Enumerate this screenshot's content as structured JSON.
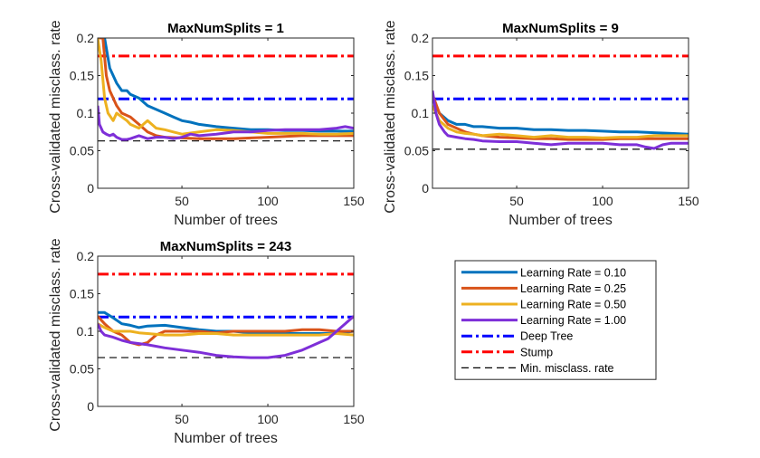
{
  "figure": {
    "colors": {
      "lr010": "#0072BD",
      "lr025": "#D95319",
      "lr050": "#EDB120",
      "lr100": "#7E2FD8",
      "deep_tree": "#0000FF",
      "stump": "#FF0000",
      "min_rate": "#000000"
    }
  },
  "legend": {
    "placement": "lower-right",
    "entries": [
      {
        "label": "Learning Rate = 0.10",
        "color": "#0072BD",
        "style": "solid"
      },
      {
        "label": "Learning Rate = 0.25",
        "color": "#D95319",
        "style": "solid"
      },
      {
        "label": "Learning Rate = 0.50",
        "color": "#EDB120",
        "style": "solid"
      },
      {
        "label": "Learning Rate = 1.00",
        "color": "#7E2FD8",
        "style": "solid"
      },
      {
        "label": "Deep Tree",
        "color": "#0000FF",
        "style": "dashdot"
      },
      {
        "label": "Stump",
        "color": "#FF0000",
        "style": "dashdot"
      },
      {
        "label": "Min. misclass. rate",
        "color": "#000000",
        "style": "dashed"
      }
    ]
  },
  "chart_data": [
    {
      "type": "line",
      "title": "MaxNumSplits = 1",
      "xlabel": "Number of trees",
      "ylabel": "Cross-validated misclass. rate",
      "xlim": [
        1,
        150
      ],
      "ylim": [
        0,
        0.2
      ],
      "xticks": [
        50,
        100,
        150
      ],
      "xtick_labels": [
        "50",
        "100",
        "150"
      ],
      "yticks": [
        0,
        0.05,
        0.1,
        0.15,
        0.2
      ],
      "ytick_labels": [
        "0",
        "0.05",
        "0.1",
        "0.15",
        "0.2"
      ],
      "grid": false,
      "series": [
        {
          "name": "Learning Rate = 0.10",
          "color": "#0072BD",
          "x": [
            1,
            5,
            8,
            10,
            12,
            15,
            18,
            20,
            25,
            30,
            35,
            40,
            45,
            50,
            55,
            60,
            70,
            80,
            90,
            100,
            110,
            120,
            130,
            140,
            150
          ],
          "y": [
            0.2,
            0.2,
            0.16,
            0.15,
            0.14,
            0.13,
            0.13,
            0.125,
            0.12,
            0.11,
            0.105,
            0.1,
            0.095,
            0.09,
            0.088,
            0.085,
            0.082,
            0.08,
            0.078,
            0.078,
            0.077,
            0.077,
            0.076,
            0.076,
            0.076
          ]
        },
        {
          "name": "Learning Rate = 0.25",
          "color": "#D95319",
          "x": [
            1,
            4,
            6,
            8,
            10,
            12,
            15,
            20,
            25,
            30,
            35,
            40,
            50,
            60,
            70,
            80,
            90,
            100,
            110,
            120,
            130,
            140,
            150
          ],
          "y": [
            0.2,
            0.2,
            0.15,
            0.13,
            0.12,
            0.11,
            0.1,
            0.095,
            0.085,
            0.075,
            0.07,
            0.068,
            0.067,
            0.066,
            0.066,
            0.066,
            0.067,
            0.068,
            0.069,
            0.07,
            0.07,
            0.07,
            0.07
          ]
        },
        {
          "name": "Learning Rate = 0.50",
          "color": "#EDB120",
          "x": [
            1,
            3,
            5,
            7,
            10,
            12,
            15,
            18,
            20,
            25,
            30,
            35,
            40,
            45,
            50,
            60,
            70,
            80,
            90,
            100,
            110,
            120,
            130,
            140,
            150
          ],
          "y": [
            0.2,
            0.17,
            0.12,
            0.1,
            0.09,
            0.1,
            0.095,
            0.09,
            0.085,
            0.08,
            0.09,
            0.08,
            0.078,
            0.075,
            0.072,
            0.075,
            0.078,
            0.077,
            0.075,
            0.073,
            0.073,
            0.073,
            0.072,
            0.072,
            0.073
          ]
        },
        {
          "name": "Learning Rate = 1.00",
          "color": "#7E2FD8",
          "x": [
            1,
            2,
            4,
            6,
            8,
            10,
            12,
            15,
            18,
            20,
            25,
            30,
            35,
            40,
            45,
            50,
            55,
            60,
            70,
            80,
            90,
            100,
            110,
            120,
            130,
            140,
            145,
            150
          ],
          "y": [
            0.11,
            0.085,
            0.075,
            0.072,
            0.07,
            0.072,
            0.068,
            0.065,
            0.065,
            0.066,
            0.07,
            0.066,
            0.068,
            0.068,
            0.066,
            0.068,
            0.072,
            0.07,
            0.072,
            0.075,
            0.075,
            0.077,
            0.078,
            0.078,
            0.078,
            0.08,
            0.082,
            0.08
          ]
        }
      ],
      "reference_lines": [
        {
          "name": "Deep Tree",
          "y": 0.119,
          "color": "#0000FF",
          "style": "dashdot"
        },
        {
          "name": "Stump",
          "y": 0.176,
          "color": "#FF0000",
          "style": "dashdot"
        },
        {
          "name": "Min. misclass. rate",
          "y": 0.063,
          "color": "#000000",
          "style": "dashed"
        }
      ]
    },
    {
      "type": "line",
      "title": "MaxNumSplits = 9",
      "xlabel": "Number of trees",
      "ylabel": "Cross-validated misclass. rate",
      "xlim": [
        1,
        150
      ],
      "ylim": [
        0,
        0.2
      ],
      "xticks": [
        50,
        100,
        150
      ],
      "xtick_labels": [
        "50",
        "100",
        "150"
      ],
      "yticks": [
        0,
        0.05,
        0.1,
        0.15,
        0.2
      ],
      "ytick_labels": [
        "0",
        "0.05",
        "0.1",
        "0.15",
        "0.2"
      ],
      "grid": false,
      "series": [
        {
          "name": "Learning Rate = 0.10",
          "color": "#0072BD",
          "x": [
            1,
            5,
            10,
            15,
            20,
            25,
            30,
            40,
            50,
            60,
            70,
            80,
            90,
            100,
            110,
            120,
            130,
            140,
            150
          ],
          "y": [
            0.12,
            0.1,
            0.09,
            0.085,
            0.085,
            0.082,
            0.082,
            0.08,
            0.08,
            0.078,
            0.078,
            0.077,
            0.077,
            0.076,
            0.075,
            0.075,
            0.074,
            0.073,
            0.072
          ]
        },
        {
          "name": "Learning Rate = 0.25",
          "color": "#D95319",
          "x": [
            1,
            5,
            10,
            15,
            20,
            25,
            30,
            40,
            50,
            60,
            70,
            80,
            90,
            100,
            110,
            120,
            130,
            140,
            150
          ],
          "y": [
            0.125,
            0.1,
            0.085,
            0.08,
            0.075,
            0.072,
            0.07,
            0.068,
            0.067,
            0.066,
            0.066,
            0.065,
            0.065,
            0.065,
            0.066,
            0.066,
            0.066,
            0.066,
            0.066
          ]
        },
        {
          "name": "Learning Rate = 0.50",
          "color": "#EDB120",
          "x": [
            1,
            5,
            10,
            15,
            20,
            25,
            30,
            40,
            50,
            60,
            70,
            80,
            90,
            100,
            110,
            120,
            130,
            140,
            150
          ],
          "y": [
            0.11,
            0.09,
            0.08,
            0.075,
            0.073,
            0.072,
            0.07,
            0.072,
            0.07,
            0.068,
            0.07,
            0.068,
            0.068,
            0.067,
            0.068,
            0.068,
            0.07,
            0.07,
            0.07
          ]
        },
        {
          "name": "Learning Rate = 1.00",
          "color": "#7E2FD8",
          "x": [
            1,
            3,
            5,
            8,
            10,
            15,
            20,
            25,
            30,
            40,
            50,
            60,
            70,
            80,
            90,
            100,
            110,
            120,
            125,
            130,
            135,
            140,
            150
          ],
          "y": [
            0.13,
            0.1,
            0.085,
            0.075,
            0.07,
            0.068,
            0.066,
            0.065,
            0.063,
            0.062,
            0.062,
            0.06,
            0.058,
            0.06,
            0.06,
            0.06,
            0.058,
            0.058,
            0.055,
            0.053,
            0.058,
            0.06,
            0.06
          ]
        }
      ],
      "reference_lines": [
        {
          "name": "Deep Tree",
          "y": 0.119,
          "color": "#0000FF",
          "style": "dashdot"
        },
        {
          "name": "Stump",
          "y": 0.176,
          "color": "#FF0000",
          "style": "dashdot"
        },
        {
          "name": "Min. misclass. rate",
          "y": 0.052,
          "color": "#000000",
          "style": "dashed"
        }
      ]
    },
    {
      "type": "line",
      "title": "MaxNumSplits = 243",
      "xlabel": "Number of trees",
      "ylabel": "Cross-validated misclass. rate",
      "xlim": [
        1,
        150
      ],
      "ylim": [
        0,
        0.2
      ],
      "xticks": [
        50,
        100,
        150
      ],
      "xtick_labels": [
        "50",
        "100",
        "150"
      ],
      "yticks": [
        0,
        0.05,
        0.1,
        0.15,
        0.2
      ],
      "ytick_labels": [
        "0",
        "0.05",
        "0.1",
        "0.15",
        "0.2"
      ],
      "grid": false,
      "series": [
        {
          "name": "Learning Rate = 0.10",
          "color": "#0072BD",
          "x": [
            1,
            5,
            10,
            15,
            20,
            25,
            30,
            40,
            50,
            60,
            70,
            80,
            90,
            100,
            110,
            120,
            130,
            140,
            150
          ],
          "y": [
            0.125,
            0.125,
            0.118,
            0.11,
            0.108,
            0.105,
            0.107,
            0.108,
            0.105,
            0.102,
            0.1,
            0.1,
            0.098,
            0.098,
            0.097,
            0.097,
            0.097,
            0.097,
            0.1
          ]
        },
        {
          "name": "Learning Rate = 0.25",
          "color": "#D95319",
          "x": [
            1,
            5,
            10,
            15,
            20,
            25,
            30,
            35,
            40,
            50,
            60,
            70,
            80,
            90,
            100,
            110,
            120,
            130,
            140,
            150
          ],
          "y": [
            0.12,
            0.11,
            0.1,
            0.095,
            0.085,
            0.082,
            0.085,
            0.095,
            0.1,
            0.1,
            0.1,
            0.098,
            0.1,
            0.1,
            0.1,
            0.1,
            0.102,
            0.102,
            0.1,
            0.1
          ]
        },
        {
          "name": "Learning Rate = 0.50",
          "color": "#EDB120",
          "x": [
            1,
            5,
            10,
            15,
            20,
            25,
            30,
            40,
            50,
            60,
            70,
            80,
            90,
            100,
            110,
            120,
            130,
            140,
            150
          ],
          "y": [
            0.11,
            0.105,
            0.1,
            0.1,
            0.1,
            0.098,
            0.097,
            0.095,
            0.095,
            0.097,
            0.097,
            0.095,
            0.095,
            0.095,
            0.095,
            0.095,
            0.095,
            0.097,
            0.095
          ]
        },
        {
          "name": "Learning Rate = 1.00",
          "color": "#7E2FD8",
          "x": [
            1,
            3,
            5,
            10,
            15,
            20,
            30,
            40,
            50,
            60,
            70,
            80,
            90,
            100,
            110,
            120,
            130,
            135,
            140,
            145,
            150
          ],
          "y": [
            0.11,
            0.1,
            0.095,
            0.092,
            0.088,
            0.085,
            0.082,
            0.078,
            0.075,
            0.072,
            0.068,
            0.066,
            0.065,
            0.065,
            0.068,
            0.075,
            0.085,
            0.09,
            0.1,
            0.11,
            0.12
          ]
        }
      ],
      "reference_lines": [
        {
          "name": "Deep Tree",
          "y": 0.119,
          "color": "#0000FF",
          "style": "dashdot"
        },
        {
          "name": "Stump",
          "y": 0.176,
          "color": "#FF0000",
          "style": "dashdot"
        },
        {
          "name": "Min. misclass. rate",
          "y": 0.065,
          "color": "#000000",
          "style": "dashed"
        }
      ]
    }
  ]
}
